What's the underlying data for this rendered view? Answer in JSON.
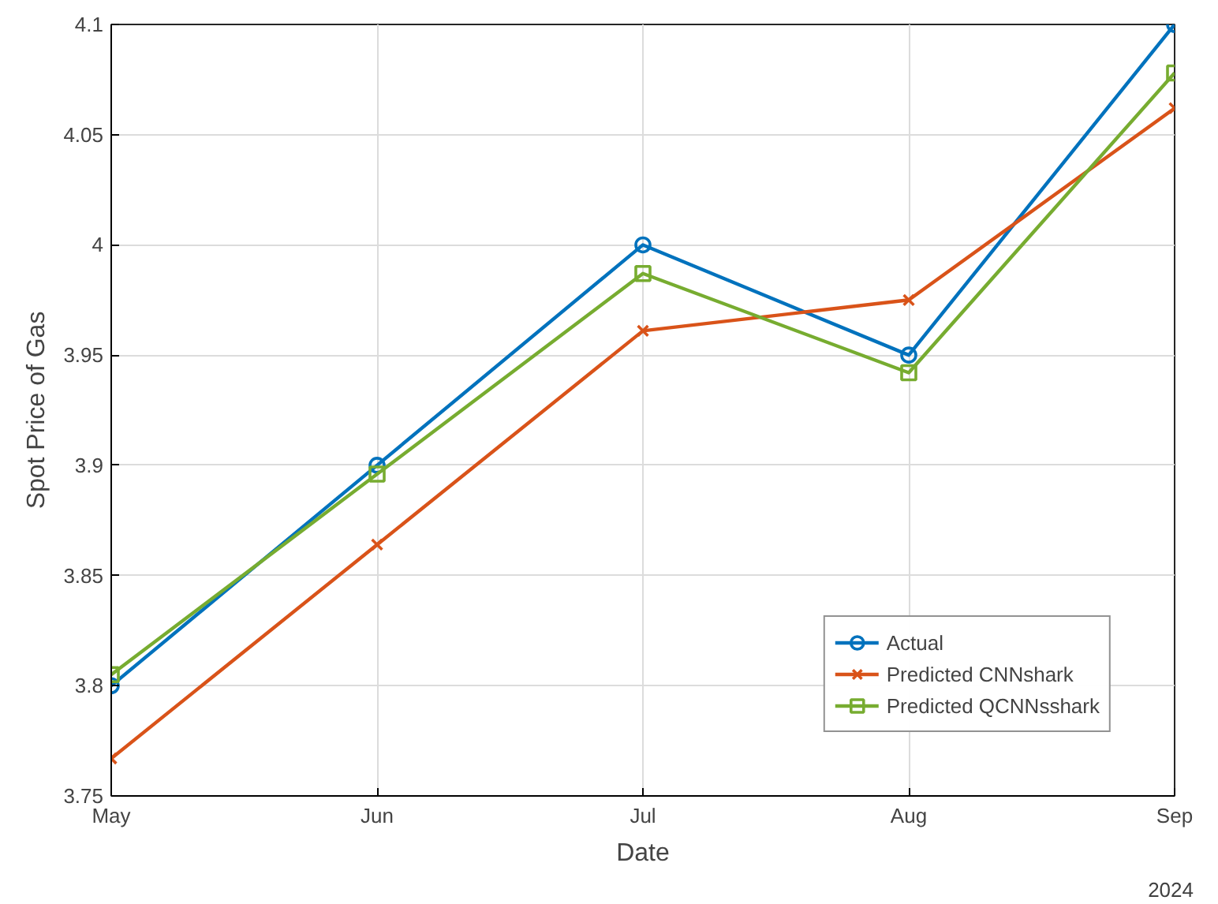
{
  "chart_data": {
    "type": "line",
    "xlabel": "Date",
    "ylabel": "Spot Price of Gas",
    "categories": [
      "May",
      "Jun",
      "Jul",
      "Aug",
      "Sep"
    ],
    "series": [
      {
        "name": "Actual",
        "color": "#0072bd",
        "marker": "circle",
        "values": [
          3.8,
          3.9,
          4.0,
          3.95,
          4.1
        ]
      },
      {
        "name": "Predicted CNNshark",
        "color": "#d95319",
        "marker": "cross",
        "values": [
          3.767,
          3.864,
          3.961,
          3.975,
          4.062
        ]
      },
      {
        "name": "Predicted QCNNsshark",
        "color": "#77ac30",
        "marker": "square",
        "values": [
          3.805,
          3.896,
          3.987,
          3.942,
          4.078
        ]
      }
    ],
    "ylim": [
      3.75,
      4.1
    ],
    "yticks": [
      3.75,
      3.8,
      3.85,
      3.9,
      3.95,
      4,
      4.05,
      4.1
    ],
    "annotations": [
      "2024"
    ],
    "grid": true,
    "legend": "bottom right",
    "line_style": "solid"
  }
}
